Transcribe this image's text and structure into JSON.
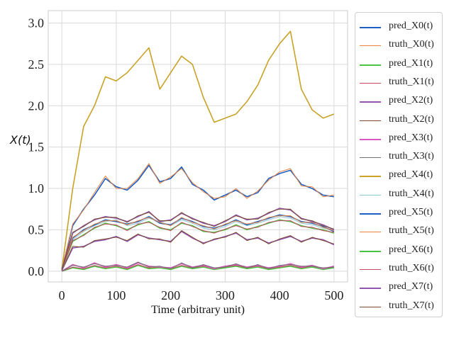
{
  "chart_data": {
    "type": "line",
    "xlabel": "Time (arbitrary unit)",
    "ylabel": "X(t)",
    "xlim": [
      -25,
      525
    ],
    "ylim": [
      -0.13,
      3.15
    ],
    "xticks": [
      0,
      100,
      200,
      300,
      400,
      500
    ],
    "yticks": [
      0.0,
      0.5,
      1.0,
      1.5,
      2.0,
      2.5,
      3.0
    ],
    "xtick_labels": [
      "0",
      "100",
      "200",
      "300",
      "400",
      "500"
    ],
    "ytick_labels": [
      "0.0",
      "0.5",
      "1.0",
      "1.5",
      "2.0",
      "2.5",
      "3.0"
    ],
    "grid": true,
    "legend_position": "outside right",
    "series": [
      {
        "name": "pred_X0(t)",
        "label_prefix": "pred_",
        "label_var": "X0(t)",
        "color": "#1f5fc4",
        "width": 1.6,
        "x": [
          0,
          20,
          40,
          60,
          80,
          100,
          120,
          140,
          160,
          180,
          200,
          220,
          240,
          260,
          280,
          300,
          320,
          340,
          360,
          380,
          400,
          420,
          440,
          460,
          480,
          500
        ],
        "y": [
          0.02,
          0.55,
          0.75,
          0.92,
          1.12,
          1.02,
          0.98,
          1.1,
          1.28,
          1.08,
          1.12,
          1.26,
          1.05,
          0.98,
          0.86,
          0.92,
          0.98,
          0.9,
          0.95,
          1.12,
          1.18,
          1.22,
          1.05,
          1.0,
          0.92,
          0.9
        ]
      },
      {
        "name": "truth_X0(t)",
        "label_prefix": "truth_",
        "label_var": "X0(t)",
        "color": "#e8823e",
        "width": 1.0,
        "x": [
          0,
          20,
          40,
          60,
          80,
          100,
          120,
          140,
          160,
          180,
          200,
          220,
          240,
          260,
          280,
          300,
          320,
          340,
          360,
          380,
          400,
          420,
          440,
          460,
          480,
          500
        ],
        "y": [
          0.02,
          0.57,
          0.74,
          0.95,
          1.15,
          1.0,
          1.0,
          1.12,
          1.3,
          1.06,
          1.14,
          1.24,
          1.07,
          0.96,
          0.88,
          0.9,
          1.0,
          0.88,
          0.97,
          1.1,
          1.2,
          1.24,
          1.03,
          1.02,
          0.9,
          0.92
        ]
      },
      {
        "name": "pred_X1(t)",
        "label_prefix": "pred_",
        "label_var": "X1(t)",
        "color": "#4cc443",
        "width": 1.6,
        "x": [
          0,
          20,
          40,
          60,
          80,
          100,
          120,
          140,
          160,
          180,
          200,
          220,
          240,
          260,
          280,
          300,
          320,
          340,
          360,
          380,
          400,
          420,
          440,
          460,
          480,
          500
        ],
        "y": [
          0.0,
          0.04,
          0.02,
          0.06,
          0.03,
          0.05,
          0.02,
          0.07,
          0.03,
          0.04,
          0.02,
          0.06,
          0.03,
          0.05,
          0.02,
          0.04,
          0.06,
          0.03,
          0.05,
          0.02,
          0.04,
          0.06,
          0.03,
          0.05,
          0.02,
          0.04
        ]
      },
      {
        "name": "truth_X1(t)",
        "label_prefix": "truth_",
        "label_var": "X1(t)",
        "color": "#c44a63",
        "width": 1.0,
        "x": [
          0,
          20,
          40,
          60,
          80,
          100,
          120,
          140,
          160,
          180,
          200,
          220,
          240,
          260,
          280,
          300,
          320,
          340,
          360,
          380,
          400,
          420,
          440,
          460,
          480,
          500
        ],
        "y": [
          0.0,
          0.05,
          0.03,
          0.07,
          0.04,
          0.06,
          0.03,
          0.08,
          0.04,
          0.05,
          0.03,
          0.07,
          0.04,
          0.06,
          0.03,
          0.05,
          0.07,
          0.04,
          0.06,
          0.03,
          0.05,
          0.07,
          0.04,
          0.06,
          0.03,
          0.05
        ]
      },
      {
        "name": "pred_X2(t)",
        "label_prefix": "pred_",
        "label_var": "X2(t)",
        "color": "#9255b0",
        "width": 1.6,
        "x": [
          0,
          20,
          40,
          60,
          80,
          100,
          120,
          140,
          160,
          180,
          200,
          220,
          240,
          260,
          280,
          300,
          320,
          340,
          360,
          380,
          400,
          420,
          440,
          460,
          480,
          500
        ],
        "y": [
          0.01,
          0.28,
          0.3,
          0.36,
          0.38,
          0.42,
          0.36,
          0.44,
          0.4,
          0.38,
          0.36,
          0.48,
          0.4,
          0.34,
          0.38,
          0.42,
          0.46,
          0.38,
          0.4,
          0.34,
          0.38,
          0.42,
          0.36,
          0.4,
          0.38,
          0.32
        ]
      },
      {
        "name": "truth_X2(t)",
        "label_prefix": "truth_",
        "label_var": "X2(t)",
        "color": "#7a4a2e",
        "width": 1.0,
        "x": [
          0,
          20,
          40,
          60,
          80,
          100,
          120,
          140,
          160,
          180,
          200,
          220,
          240,
          260,
          280,
          300,
          320,
          340,
          360,
          380,
          400,
          420,
          440,
          460,
          480,
          500
        ],
        "y": [
          0.01,
          0.3,
          0.29,
          0.37,
          0.39,
          0.41,
          0.37,
          0.45,
          0.39,
          0.39,
          0.35,
          0.49,
          0.41,
          0.33,
          0.39,
          0.41,
          0.47,
          0.37,
          0.41,
          0.33,
          0.39,
          0.43,
          0.35,
          0.41,
          0.37,
          0.33
        ]
      },
      {
        "name": "pred_X3(t)",
        "label_prefix": "pred_",
        "label_var": "X3(t)",
        "color": "#d957c0",
        "width": 1.6,
        "x": [
          0,
          20,
          40,
          60,
          80,
          100,
          120,
          140,
          160,
          180,
          200,
          220,
          240,
          260,
          280,
          300,
          320,
          340,
          360,
          380,
          400,
          420,
          440,
          460,
          480,
          500
        ],
        "y": [
          0.0,
          0.08,
          0.04,
          0.1,
          0.05,
          0.08,
          0.04,
          0.1,
          0.06,
          0.05,
          0.04,
          0.09,
          0.05,
          0.07,
          0.03,
          0.06,
          0.08,
          0.05,
          0.07,
          0.04,
          0.06,
          0.09,
          0.05,
          0.07,
          0.03,
          0.06
        ]
      },
      {
        "name": "truth_X3(t)",
        "label_prefix": "truth_",
        "label_var": "X3(t)",
        "color": "#6f6f6f",
        "width": 1.0,
        "x": [
          0,
          20,
          40,
          60,
          80,
          100,
          120,
          140,
          160,
          180,
          200,
          220,
          240,
          260,
          280,
          300,
          320,
          340,
          360,
          380,
          400,
          420,
          440,
          460,
          480,
          500
        ],
        "y": [
          0.0,
          0.07,
          0.05,
          0.09,
          0.06,
          0.07,
          0.05,
          0.11,
          0.05,
          0.06,
          0.03,
          0.1,
          0.04,
          0.08,
          0.04,
          0.05,
          0.09,
          0.04,
          0.08,
          0.03,
          0.07,
          0.08,
          0.06,
          0.06,
          0.04,
          0.05
        ]
      },
      {
        "name": "pred_X4(t)",
        "label_prefix": "pred_",
        "label_var": "X4(t)",
        "color": "#c9a227",
        "width": 1.6,
        "x": [
          0,
          20,
          40,
          60,
          80,
          100,
          120,
          140,
          160,
          180,
          200,
          220,
          240,
          260,
          280,
          300,
          320,
          340,
          360,
          380,
          400,
          420,
          440,
          460,
          480,
          500
        ],
        "y": [
          0.02,
          1.0,
          1.75,
          2.0,
          2.35,
          2.3,
          2.4,
          2.55,
          2.7,
          2.2,
          2.4,
          2.6,
          2.5,
          2.1,
          1.8,
          1.85,
          1.9,
          2.05,
          2.25,
          2.55,
          2.75,
          2.9,
          2.2,
          1.95,
          1.85,
          1.9
        ]
      },
      {
        "name": "truth_X4(t)",
        "label_prefix": "truth_",
        "label_var": "X4(t)",
        "color": "#8cc8d4",
        "width": 1.0,
        "x": [
          0,
          20,
          40,
          60,
          80,
          100,
          120,
          140,
          160,
          180,
          200,
          220,
          240,
          260,
          280,
          300,
          320,
          340,
          360,
          380,
          400,
          420,
          440,
          460,
          480,
          500
        ],
        "y": [
          0.02,
          0.38,
          0.48,
          0.55,
          0.6,
          0.62,
          0.55,
          0.58,
          0.64,
          0.6,
          0.55,
          0.62,
          0.58,
          0.52,
          0.5,
          0.54,
          0.6,
          0.55,
          0.58,
          0.62,
          0.66,
          0.64,
          0.58,
          0.56,
          0.52,
          0.5
        ]
      },
      {
        "name": "pred_X5(t)",
        "label_prefix": "pred_",
        "label_var": "X5(t)",
        "color": "#1f5fc4",
        "width": 1.6,
        "x": [
          0,
          20,
          40,
          60,
          80,
          100,
          120,
          140,
          160,
          180,
          200,
          220,
          240,
          260,
          280,
          300,
          320,
          340,
          360,
          380,
          400,
          420,
          440,
          460,
          480,
          500
        ],
        "y": [
          0.02,
          0.4,
          0.5,
          0.56,
          0.62,
          0.6,
          0.57,
          0.6,
          0.66,
          0.58,
          0.56,
          0.64,
          0.6,
          0.54,
          0.52,
          0.56,
          0.62,
          0.56,
          0.6,
          0.64,
          0.68,
          0.66,
          0.6,
          0.58,
          0.54,
          0.48
        ]
      },
      {
        "name": "truth_X5(t)",
        "label_prefix": "truth_",
        "label_var": "X5(t)",
        "color": "#e8823e",
        "width": 1.0,
        "x": [
          0,
          20,
          40,
          60,
          80,
          100,
          120,
          140,
          160,
          180,
          200,
          220,
          240,
          260,
          280,
          300,
          320,
          340,
          360,
          380,
          400,
          420,
          440,
          460,
          480,
          500
        ],
        "y": [
          0.02,
          0.41,
          0.49,
          0.57,
          0.61,
          0.61,
          0.56,
          0.61,
          0.65,
          0.59,
          0.55,
          0.65,
          0.59,
          0.55,
          0.51,
          0.57,
          0.61,
          0.57,
          0.59,
          0.65,
          0.67,
          0.67,
          0.59,
          0.59,
          0.53,
          0.49
        ]
      },
      {
        "name": "pred_X6(t)",
        "label_prefix": "pred_",
        "label_var": "X6(t)",
        "color": "#4cc443",
        "width": 1.6,
        "x": [
          0,
          20,
          40,
          60,
          80,
          100,
          120,
          140,
          160,
          180,
          200,
          220,
          240,
          260,
          280,
          300,
          320,
          340,
          360,
          380,
          400,
          420,
          440,
          460,
          480,
          500
        ],
        "y": [
          0.02,
          0.36,
          0.44,
          0.52,
          0.58,
          0.55,
          0.5,
          0.56,
          0.6,
          0.52,
          0.5,
          0.58,
          0.55,
          0.48,
          0.47,
          0.5,
          0.56,
          0.5,
          0.54,
          0.58,
          0.62,
          0.6,
          0.55,
          0.52,
          0.5,
          0.46
        ]
      },
      {
        "name": "truth_X6(t)",
        "label_prefix": "truth_",
        "label_var": "X6(t)",
        "color": "#c44a63",
        "width": 1.0,
        "x": [
          0,
          20,
          40,
          60,
          80,
          100,
          120,
          140,
          160,
          180,
          200,
          220,
          240,
          260,
          280,
          300,
          320,
          340,
          360,
          380,
          400,
          420,
          440,
          460,
          480,
          500
        ],
        "y": [
          0.02,
          0.37,
          0.43,
          0.53,
          0.57,
          0.56,
          0.49,
          0.57,
          0.59,
          0.53,
          0.49,
          0.59,
          0.54,
          0.49,
          0.46,
          0.51,
          0.55,
          0.51,
          0.53,
          0.59,
          0.61,
          0.61,
          0.54,
          0.53,
          0.49,
          0.47
        ]
      },
      {
        "name": "pred_X7(t)",
        "label_prefix": "pred_",
        "label_var": "X7(t)",
        "color": "#9255b0",
        "width": 1.6,
        "x": [
          0,
          20,
          40,
          60,
          80,
          100,
          120,
          140,
          160,
          180,
          200,
          220,
          240,
          260,
          280,
          300,
          320,
          340,
          360,
          380,
          400,
          420,
          440,
          460,
          480,
          500
        ],
        "y": [
          0.02,
          0.46,
          0.55,
          0.62,
          0.66,
          0.64,
          0.6,
          0.66,
          0.72,
          0.6,
          0.62,
          0.7,
          0.64,
          0.58,
          0.55,
          0.6,
          0.68,
          0.62,
          0.64,
          0.7,
          0.76,
          0.74,
          0.64,
          0.6,
          0.56,
          0.5
        ]
      },
      {
        "name": "truth_X7(t)",
        "label_prefix": "truth_",
        "label_var": "X7(t)",
        "color": "#7a4a2e",
        "width": 1.0,
        "x": [
          0,
          20,
          40,
          60,
          80,
          100,
          120,
          140,
          160,
          180,
          200,
          220,
          240,
          260,
          280,
          300,
          320,
          340,
          360,
          380,
          400,
          420,
          440,
          460,
          480,
          500
        ],
        "y": [
          0.02,
          0.47,
          0.54,
          0.63,
          0.65,
          0.65,
          0.59,
          0.67,
          0.71,
          0.61,
          0.61,
          0.71,
          0.63,
          0.59,
          0.54,
          0.61,
          0.67,
          0.63,
          0.63,
          0.71,
          0.75,
          0.75,
          0.63,
          0.61,
          0.55,
          0.51
        ]
      }
    ]
  }
}
